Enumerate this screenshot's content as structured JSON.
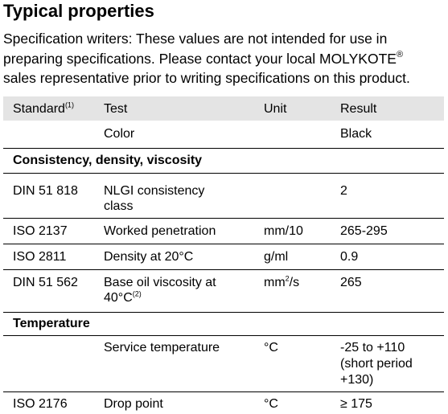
{
  "heading": "Typical properties",
  "intro": {
    "line1": "Specification writers: These values are not intended for use in",
    "line2_prefix": "preparing specifications. Please contact your local MOLYKOTE",
    "line2_mark": "®",
    "line3": "sales representative prior to writing specifications on this product."
  },
  "table": {
    "headers": {
      "standard": "Standard",
      "standard_note": "(1)",
      "test": "Test",
      "unit": "Unit",
      "result": "Result"
    },
    "color_row": {
      "test": "Color",
      "result": "Black"
    },
    "section_consistency": "Consistency, density, viscosity",
    "nlgi": {
      "standard": "DIN 51 818",
      "test_line1": "NLGI consistency",
      "test_line2": "class",
      "result": "2"
    },
    "penetration": {
      "standard": "ISO 2137",
      "test": "Worked penetration",
      "unit": "mm/10",
      "result": "265-295"
    },
    "density": {
      "standard": "ISO 2811",
      "test": "Density at 20°C",
      "unit": "g/ml",
      "result": "0.9"
    },
    "viscosity": {
      "standard": "DIN 51 562",
      "test_line1": "Base oil viscosity at",
      "test_line2": "40°C",
      "test_note": "(2)",
      "unit_base": "mm",
      "unit_exp": "2",
      "unit_rest": "/s",
      "result": "265"
    },
    "section_temperature": "Temperature",
    "service_temp": {
      "test": "Service temperature",
      "unit": "°C",
      "result_line1": "-25 to +110",
      "result_line2": "(short period",
      "result_line3": "+130)"
    },
    "drop_point": {
      "standard": "ISO 2176",
      "test": "Drop point",
      "unit": "°C",
      "result": "≥ 175"
    }
  }
}
